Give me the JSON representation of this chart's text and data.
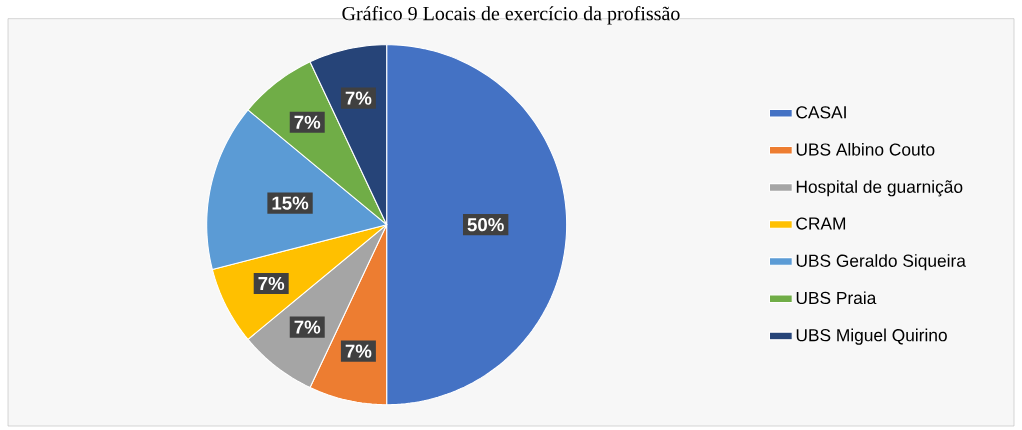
{
  "chart_data": {
    "type": "pie",
    "title": "Gráfico 9 Locais de exercício da profissão",
    "categories": [
      "CASAI",
      "UBS Albino Couto",
      "Hospital de guarnição",
      "CRAM",
      "UBS Geraldo Siqueira",
      "UBS Praia",
      "UBS Miguel Quirino"
    ],
    "values": [
      50,
      7,
      7,
      7,
      15,
      7,
      7
    ],
    "value_labels": [
      "50%",
      "7%",
      "7%",
      "7%",
      "15%",
      "7%",
      "7%"
    ],
    "colors": [
      "#4472c4",
      "#ed7d31",
      "#a5a5a5",
      "#ffc000",
      "#5b9bd5",
      "#70ad47",
      "#264478"
    ],
    "legend": "right"
  }
}
